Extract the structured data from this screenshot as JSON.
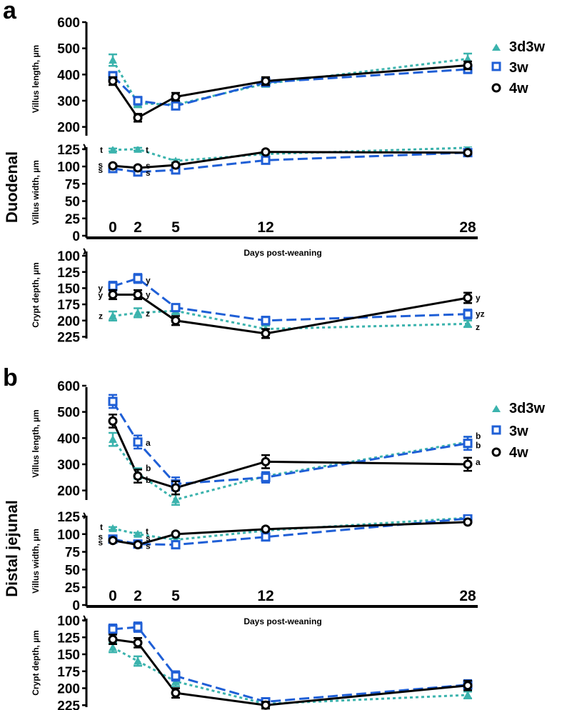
{
  "figure": {
    "panels": [
      {
        "letter": "a",
        "region": "Duodenal"
      },
      {
        "letter": "b",
        "region": "Distal jejunal"
      }
    ],
    "legend": [
      "3d3w",
      "3w",
      "4w"
    ],
    "xlabel": "Days post-weaning",
    "colors": {
      "3d3w": "#3bb3ad",
      "3w": "#1f5fd6",
      "4w": "#000000"
    }
  },
  "chart_data": [
    {
      "type": "line",
      "panel": "a",
      "region": "Duodenal",
      "measure": "villus_length",
      "ylabel": "Villus length, µm",
      "x": [
        0,
        2,
        5,
        12,
        28
      ],
      "ylim": [
        150,
        600
      ],
      "yticks": [
        200,
        300,
        400,
        500,
        600
      ],
      "reversed": false,
      "series": [
        {
          "name": "3d3w",
          "values": [
            455,
            290,
            285,
            365,
            460
          ],
          "errors": [
            22,
            15,
            12,
            12,
            20
          ]
        },
        {
          "name": "3w",
          "values": [
            395,
            300,
            280,
            370,
            420
          ],
          "errors": [
            15,
            15,
            12,
            12,
            15
          ]
        },
        {
          "name": "4w",
          "values": [
            375,
            235,
            315,
            375,
            435
          ],
          "errors": [
            15,
            15,
            15,
            15,
            15
          ]
        }
      ],
      "annotations": []
    },
    {
      "type": "line",
      "panel": "a",
      "region": "Duodenal",
      "measure": "villus_width",
      "ylabel": "Villus width, µm",
      "x": [
        0,
        2,
        5,
        12,
        28
      ],
      "ylim": [
        0,
        130
      ],
      "yticks": [
        0,
        25,
        50,
        75,
        100,
        125
      ],
      "xticks": [
        "0",
        "2",
        "5",
        "12",
        "28"
      ],
      "reversed": false,
      "series": [
        {
          "name": "3d3w",
          "values": [
            124,
            125,
            108,
            118,
            127
          ],
          "errors": [
            2,
            2,
            2,
            2,
            2
          ]
        },
        {
          "name": "3w",
          "values": [
            97,
            92,
            95,
            109,
            120
          ],
          "errors": [
            2,
            2,
            2,
            2,
            2
          ]
        },
        {
          "name": "4w",
          "values": [
            101,
            98,
            102,
            121,
            120
          ],
          "errors": [
            2,
            2,
            2,
            2,
            2
          ]
        }
      ],
      "annotations": [
        {
          "x": 0,
          "y": 124,
          "text": "t",
          "side": "left"
        },
        {
          "x": 2,
          "y": 124,
          "text": "t",
          "side": "right"
        },
        {
          "x": 0,
          "y": 102,
          "text": "s",
          "side": "left"
        },
        {
          "x": 0,
          "y": 95,
          "text": "s",
          "side": "left"
        },
        {
          "x": 2,
          "y": 101,
          "text": "s",
          "side": "right"
        },
        {
          "x": 2,
          "y": 91,
          "text": "s",
          "side": "right"
        }
      ]
    },
    {
      "type": "line",
      "panel": "a",
      "region": "Duodenal",
      "measure": "crypt_depth",
      "ylabel": "Crypt depth, µm",
      "x": [
        0,
        2,
        5,
        12,
        28
      ],
      "ylim": [
        90,
        230
      ],
      "yticks": [
        100,
        125,
        150,
        175,
        200,
        225
      ],
      "reversed": true,
      "series": [
        {
          "name": "3d3w",
          "values": [
            193,
            188,
            185,
            213,
            205
          ],
          "errors": [
            7,
            7,
            5,
            5,
            5
          ]
        },
        {
          "name": "3w",
          "values": [
            147,
            135,
            180,
            200,
            190
          ],
          "errors": [
            7,
            7,
            5,
            6,
            7
          ]
        },
        {
          "name": "4w",
          "values": [
            160,
            160,
            200,
            220,
            165
          ],
          "errors": [
            7,
            7,
            7,
            7,
            8
          ]
        }
      ],
      "annotations": [
        {
          "x": 0,
          "y": 150,
          "text": "y",
          "side": "left"
        },
        {
          "x": 0,
          "y": 161,
          "text": "y",
          "side": "left"
        },
        {
          "x": 0,
          "y": 193,
          "text": "z",
          "side": "left"
        },
        {
          "x": 2,
          "y": 138,
          "text": "y",
          "side": "right"
        },
        {
          "x": 2,
          "y": 160,
          "text": "y",
          "side": "right"
        },
        {
          "x": 2,
          "y": 189,
          "text": "z",
          "side": "right"
        },
        {
          "x": 28,
          "y": 165,
          "text": "y",
          "side": "right"
        },
        {
          "x": 28,
          "y": 190,
          "text": "yz",
          "side": "right"
        },
        {
          "x": 28,
          "y": 210,
          "text": "z",
          "side": "right"
        }
      ]
    },
    {
      "type": "line",
      "panel": "b",
      "region": "Distal jejunal",
      "measure": "villus_length",
      "ylabel": "Villus length, µm",
      "x": [
        0,
        2,
        5,
        12,
        28
      ],
      "ylim": [
        150,
        600
      ],
      "yticks": [
        200,
        300,
        400,
        500,
        600
      ],
      "reversed": false,
      "series": [
        {
          "name": "3d3w",
          "values": [
            395,
            265,
            165,
            255,
            385
          ],
          "errors": [
            25,
            20,
            20,
            15,
            20
          ]
        },
        {
          "name": "3w",
          "values": [
            540,
            385,
            225,
            250,
            380
          ],
          "errors": [
            25,
            25,
            25,
            20,
            25
          ]
        },
        {
          "name": "4w",
          "values": [
            465,
            255,
            210,
            310,
            300
          ],
          "errors": [
            25,
            25,
            25,
            25,
            25
          ]
        }
      ],
      "annotations": [
        {
          "x": 2,
          "y": 382,
          "text": "a",
          "side": "right"
        },
        {
          "x": 2,
          "y": 285,
          "text": "b",
          "side": "right"
        },
        {
          "x": 2,
          "y": 240,
          "text": "b",
          "side": "right"
        },
        {
          "x": 28,
          "y": 408,
          "text": "b",
          "side": "right"
        },
        {
          "x": 28,
          "y": 372,
          "text": "b",
          "side": "right"
        },
        {
          "x": 28,
          "y": 308,
          "text": "a",
          "side": "right"
        }
      ]
    },
    {
      "type": "line",
      "panel": "b",
      "region": "Distal jejunal",
      "measure": "villus_width",
      "ylabel": "Villus width, µm",
      "x": [
        0,
        2,
        5,
        12,
        28
      ],
      "ylim": [
        0,
        130
      ],
      "yticks": [
        0,
        25,
        50,
        75,
        100,
        125
      ],
      "xticks": [
        "0",
        "2",
        "5",
        "12",
        "28"
      ],
      "reversed": false,
      "series": [
        {
          "name": "3d3w",
          "values": [
            108,
            100,
            92,
            105,
            123
          ],
          "errors": [
            2,
            2,
            2,
            2,
            2
          ]
        },
        {
          "name": "3w",
          "values": [
            93,
            86,
            85,
            96,
            122
          ],
          "errors": [
            2,
            2,
            2,
            2,
            2
          ]
        },
        {
          "name": "4w",
          "values": [
            91,
            85,
            100,
            107,
            117
          ],
          "errors": [
            2,
            2,
            2,
            2,
            2
          ]
        }
      ],
      "annotations": [
        {
          "x": 0,
          "y": 110,
          "text": "t",
          "side": "left"
        },
        {
          "x": 0,
          "y": 96,
          "text": "s",
          "side": "left"
        },
        {
          "x": 0,
          "y": 88,
          "text": "s",
          "side": "left"
        },
        {
          "x": 2,
          "y": 104,
          "text": "t",
          "side": "right"
        },
        {
          "x": 2,
          "y": 94,
          "text": "s",
          "side": "right"
        },
        {
          "x": 2,
          "y": 83,
          "text": "s",
          "side": "right"
        }
      ]
    },
    {
      "type": "line",
      "panel": "b",
      "region": "Distal jejunal",
      "measure": "crypt_depth",
      "ylabel": "Crypt depth, µm",
      "x": [
        0,
        2,
        5,
        12,
        28
      ],
      "ylim": [
        90,
        230
      ],
      "yticks": [
        100,
        125,
        150,
        175,
        200,
        225
      ],
      "reversed": true,
      "series": [
        {
          "name": "3d3w",
          "values": [
            140,
            160,
            190,
            223,
            210
          ],
          "errors": [
            7,
            7,
            7,
            5,
            5
          ]
        },
        {
          "name": "3w",
          "values": [
            113,
            110,
            182,
            220,
            195
          ],
          "errors": [
            7,
            7,
            7,
            5,
            7
          ]
        },
        {
          "name": "4w",
          "values": [
            128,
            133,
            207,
            225,
            196
          ],
          "errors": [
            7,
            7,
            7,
            5,
            7
          ]
        }
      ],
      "annotations": []
    }
  ]
}
